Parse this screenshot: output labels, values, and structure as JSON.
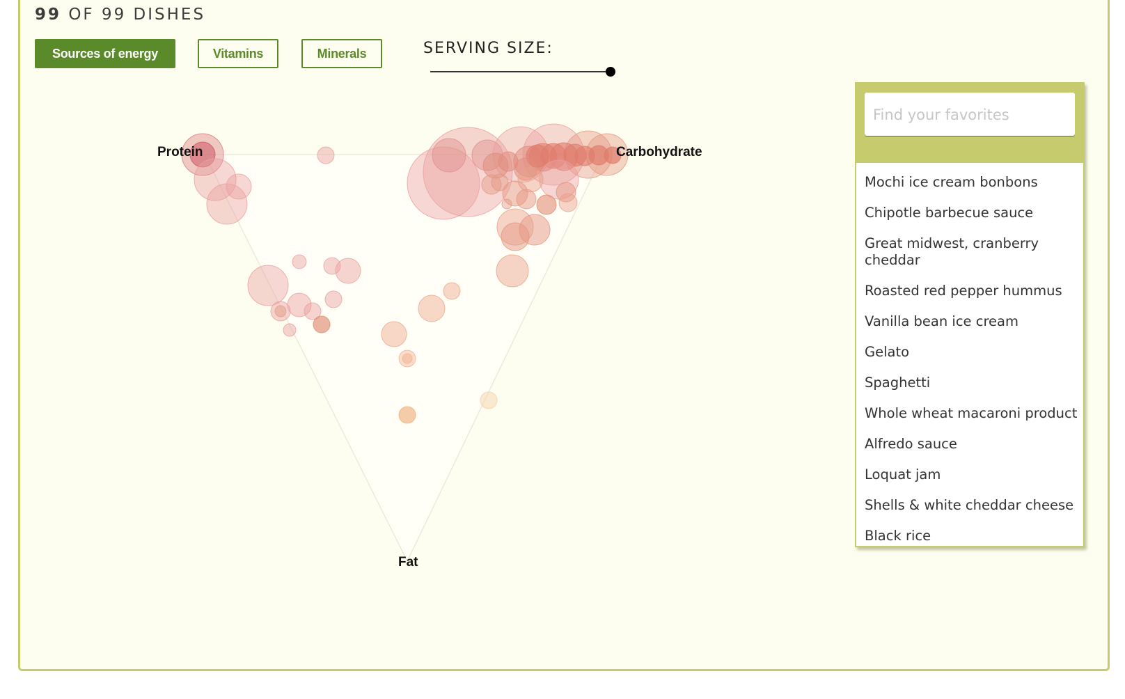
{
  "header": {
    "count_num": "99",
    "count_text": " OF 99 DISHES"
  },
  "tabs": [
    {
      "label": "Sources of energy",
      "active": true
    },
    {
      "label": "Vitamins",
      "active": false
    },
    {
      "label": "Minerals",
      "active": false
    }
  ],
  "serving": {
    "label": "SERVING SIZE:",
    "value_fraction": 1.0
  },
  "colors": {
    "accent": "#5b8a2a",
    "panel_border": "#c6cc6e",
    "background": "#fefef0"
  },
  "search": {
    "placeholder": "Find your favorites",
    "value": ""
  },
  "favorites": [
    "Mochi ice cream bonbons",
    "Chipotle barbecue sauce",
    "Great midwest, cranberry cheddar",
    "Roasted red pepper hummus",
    "Vanilla bean ice cream",
    "Gelato",
    "Spaghetti",
    "Whole wheat macaroni product",
    "Alfredo sauce",
    "Loquat jam",
    "Shells & white cheddar cheese",
    "Black rice"
  ],
  "chart_data": {
    "type": "scatter",
    "chart_kind": "ternary bubble",
    "axes": [
      "Protein",
      "Carbohydrate",
      "Fat"
    ],
    "point_count": 99
  }
}
